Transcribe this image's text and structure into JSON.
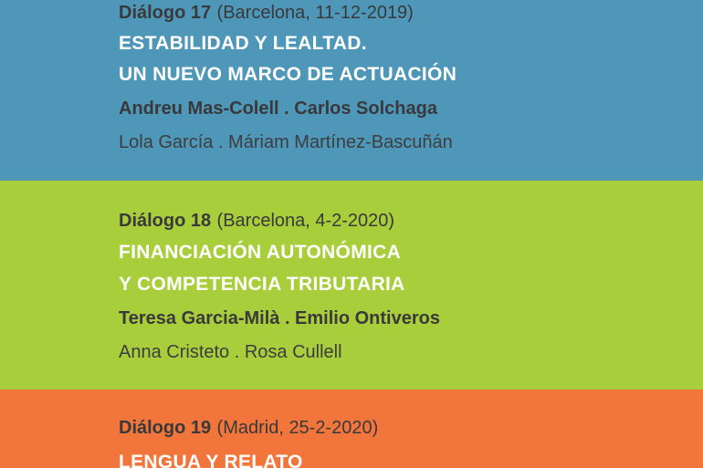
{
  "document": {
    "kind": "event-program-page",
    "language": "es"
  },
  "colors": {
    "band_blue": "#4f97b8",
    "band_green": "#a9ce3b",
    "band_orange": "#f2763b",
    "dark_text": "#39393b",
    "light_text": "#ffffff"
  },
  "panels": [
    {
      "id": "dialogo-17",
      "band_color": "#4f97b8",
      "dialog_label": "Diálogo 17",
      "dialog_meta": "(Barcelona, 11-12-2019)",
      "title_line_1": "ESTABILIDAD Y LEALTAD.",
      "title_line_2": "UN NUEVO MARCO DE ACTUACIÓN",
      "speakers": "Andreu Mas-Colell . Carlos Solchaga",
      "moderators": "Lola García . Máriam Martínez-Bascuñán"
    },
    {
      "id": "dialogo-18",
      "band_color": "#a9ce3b",
      "dialog_label": "Diálogo 18",
      "dialog_meta": "(Barcelona, 4-2-2020)",
      "title_line_1": "FINANCIACIÓN AUTONÓMICA",
      "title_line_2": "Y COMPETENCIA TRIBUTARIA",
      "speakers": "Teresa Garcia-Milà . Emilio Ontiveros",
      "moderators": "Anna Cristeto . Rosa Cullell"
    },
    {
      "id": "dialogo-19",
      "band_color": "#f2763b",
      "dialog_label": "Diálogo 19",
      "dialog_meta": "(Madrid, 25-2-2020)",
      "title_line_1": "LENGUA Y RELATO"
    }
  ]
}
